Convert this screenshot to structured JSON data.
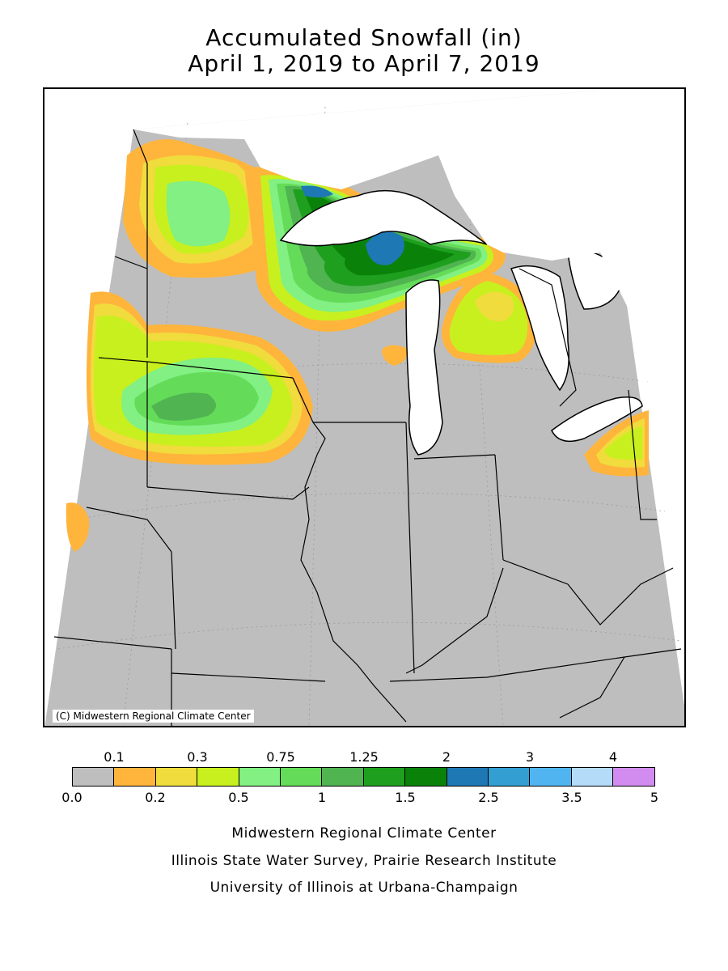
{
  "title": {
    "line1": "Accumulated Snowfall (in)",
    "line2": "April 1, 2019 to April 7, 2019"
  },
  "map": {
    "copyright": "(C) Midwestern Regional Climate Center",
    "background_color": "#bebebe",
    "water_color": "#ffffff"
  },
  "legend": {
    "top_labels": [
      "0.1",
      "0.3",
      "0.75",
      "1.25",
      "2",
      "3",
      "4"
    ],
    "bottom_labels": [
      "0.0",
      "0.2",
      "0.5",
      "1",
      "1.5",
      "2.5",
      "3.5",
      "5"
    ],
    "colors": [
      "#bebebe",
      "#ffb43c",
      "#f0dc3c",
      "#c8f01e",
      "#82f082",
      "#64dc5a",
      "#50b450",
      "#1ea01e",
      "#0a820a",
      "#1e78b4",
      "#329ed2",
      "#50b4f0",
      "#b4dcf8",
      "#d28cf0"
    ]
  },
  "footer": {
    "line1": "Midwestern Regional Climate Center",
    "line2": "Illinois State Water Survey, Prairie Research Institute",
    "line3": "University of Illinois at Urbana-Champaign"
  }
}
